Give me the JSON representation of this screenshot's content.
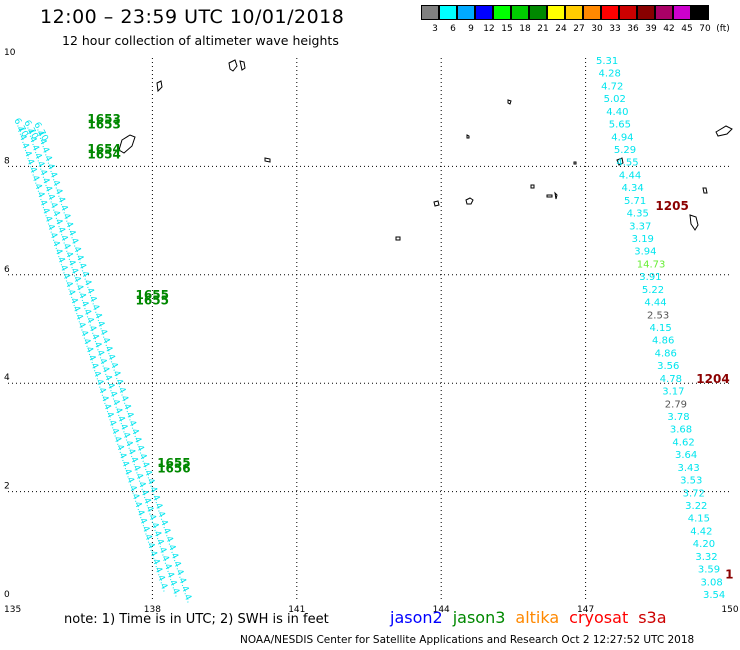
{
  "header": {
    "title": "12:00 – 23:59 UTC 10/01/2018",
    "subtitle": "12 hour collection of altimeter wave heights"
  },
  "color_scale": {
    "unit": "(ft)",
    "bins": [
      {
        "label": "3",
        "color": "#808080"
      },
      {
        "label": "6",
        "color": "#00ffff"
      },
      {
        "label": "9",
        "color": "#00aaff"
      },
      {
        "label": "12",
        "color": "#0000ff"
      },
      {
        "label": "15",
        "color": "#00ff00"
      },
      {
        "label": "18",
        "color": "#00cc00"
      },
      {
        "label": "21",
        "color": "#008800"
      },
      {
        "label": "24",
        "color": "#ffff00"
      },
      {
        "label": "27",
        "color": "#ffcc00"
      },
      {
        "label": "30",
        "color": "#ff8800"
      },
      {
        "label": "33",
        "color": "#ff0000"
      },
      {
        "label": "36",
        "color": "#cc0000"
      },
      {
        "label": "39",
        "color": "#880000"
      },
      {
        "label": "42",
        "color": "#aa0066"
      },
      {
        "label": "45",
        "color": "#cc00cc"
      },
      {
        "label": "70",
        "color": "#000000"
      }
    ]
  },
  "map": {
    "lon_ticks": [
      "135",
      "138",
      "141",
      "144",
      "147",
      "150"
    ],
    "lat_ticks": [
      "0",
      "2",
      "4",
      "6",
      "8",
      "10"
    ],
    "lon_range": [
      135,
      150
    ],
    "lat_range": [
      0,
      10
    ]
  },
  "tracks": {
    "right_track": {
      "color": "#00e5ee",
      "values": [
        "5.31",
        "4.28",
        "4.72",
        "5.02",
        "4.40",
        "5.65",
        "4.94",
        "5.29",
        "4.55",
        "4.44",
        "4.34",
        "5.71",
        "4.35",
        "3.37",
        "3.19",
        "3.94",
        "14.73",
        "3.91",
        "5.22",
        "4.44",
        "2.53",
        "4.15",
        "4.86",
        "4.86",
        "3.56",
        "4.78",
        "3.17",
        "2.79",
        "3.78",
        "3.68",
        "4.62",
        "3.64",
        "3.43",
        "3.53",
        "3.72",
        "3.22",
        "4.15",
        "4.42",
        "4.20",
        "3.32",
        "3.59",
        "3.08",
        "3.54"
      ]
    },
    "time_labels": [
      {
        "text": "1653",
        "color": "#008800",
        "lon": 136.65,
        "lat": 8.8
      },
      {
        "text": "1653",
        "color": "#008800",
        "lon": 136.65,
        "lat": 8.7
      },
      {
        "text": "1654",
        "color": "#008800",
        "lon": 136.65,
        "lat": 8.25
      },
      {
        "text": "1654",
        "color": "#008800",
        "lon": 136.65,
        "lat": 8.15
      },
      {
        "text": "1655",
        "color": "#008800",
        "lon": 137.65,
        "lat": 5.55
      },
      {
        "text": "1655",
        "color": "#008800",
        "lon": 137.65,
        "lat": 5.45
      },
      {
        "text": "1655",
        "color": "#008800",
        "lon": 138.1,
        "lat": 2.45
      },
      {
        "text": "1656",
        "color": "#008800",
        "lon": 138.1,
        "lat": 2.35
      },
      {
        "text": "1205",
        "color": "#8b0000",
        "lon": 148.45,
        "lat": 7.2
      },
      {
        "text": "1204",
        "color": "#8b0000",
        "lon": 149.3,
        "lat": 4.0
      },
      {
        "text": "1",
        "color": "#8b0000",
        "lon": 149.9,
        "lat": 0.4
      }
    ],
    "left_track_first_value": "6.70"
  },
  "footer": {
    "note": "note:  1) Time is in UTC;  2) SWH is in feet",
    "satellites": [
      {
        "name": "jason2",
        "color": "#0000ff"
      },
      {
        "name": "jason3",
        "color": "#008800"
      },
      {
        "name": "altika",
        "color": "#ff8800"
      },
      {
        "name": "cryosat",
        "color": "#ff0000"
      },
      {
        "name": "s3a",
        "color": "#cc0000"
      }
    ],
    "credit": "NOAA/NESDIS Center for Satellite Applications and Research    Oct  2 12:27:52 UTC 2018"
  }
}
